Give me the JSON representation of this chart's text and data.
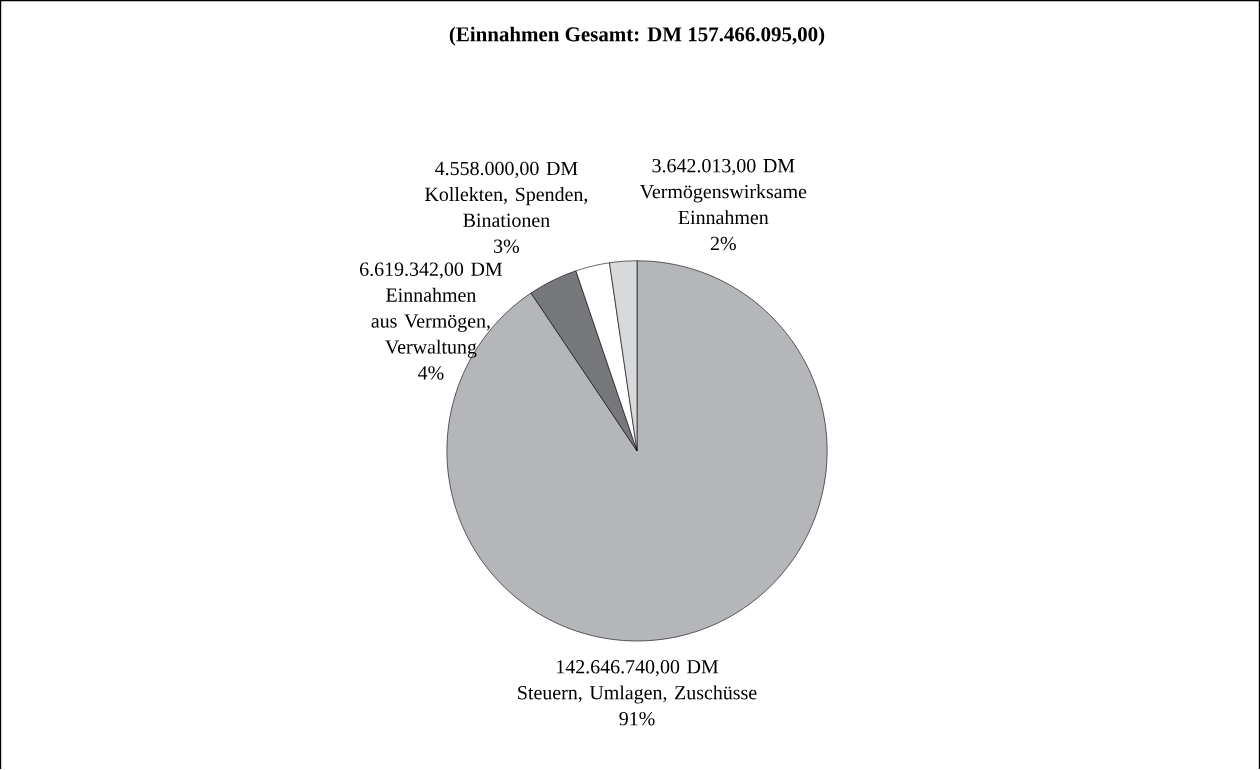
{
  "chart_data": {
    "type": "pie",
    "title": "(Einnahmen Gesamt: DM 157.466.095,00)",
    "categories": [
      "Steuern, Umlagen, Zuschüsse",
      "Einnahmen aus Vermögen, Verwaltung",
      "Kollekten, Spenden, Binationen",
      "Vermögenswirksame Einnahmen"
    ],
    "values": [
      142646740,
      6619342,
      4558000,
      3642013
    ],
    "value_labels": [
      "142.646.740,00 DM",
      "6.619.342,00 DM",
      "4.558.000,00 DM",
      "3.642.013,00 DM"
    ],
    "colors": [
      "#b5b6ba",
      "#77787c",
      "#ffffff",
      "#d8d9db"
    ],
    "annotations": [
      "91%",
      "4%",
      "3%",
      "2%"
    ]
  }
}
